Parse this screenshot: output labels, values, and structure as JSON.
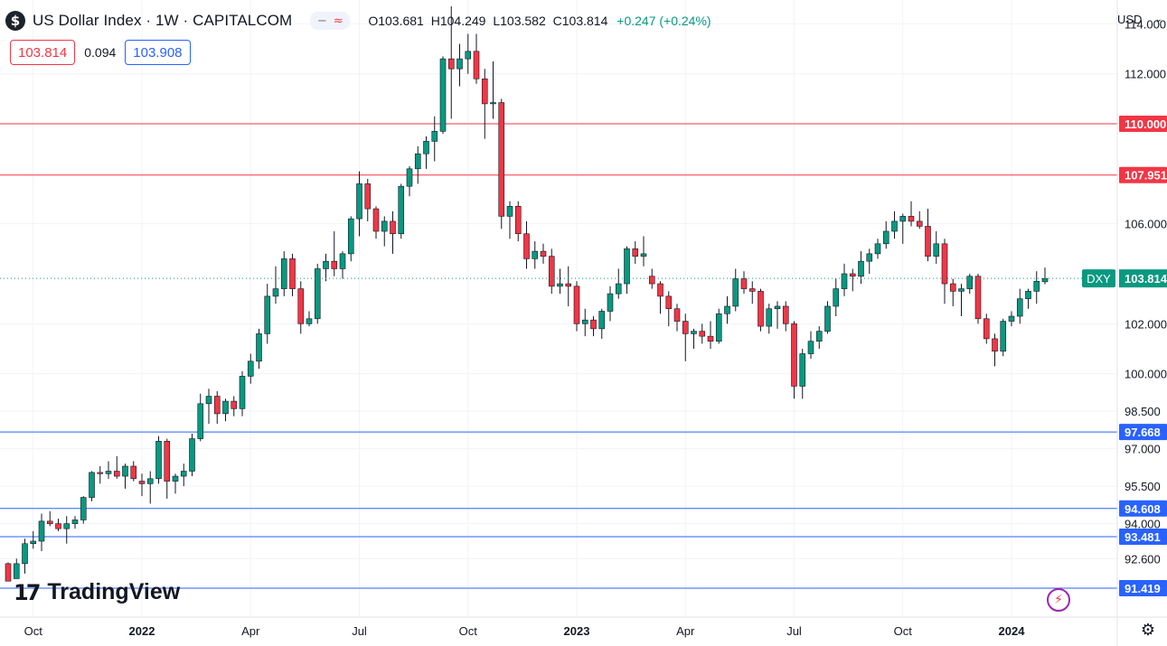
{
  "header": {
    "symbol_icon": "$",
    "title": "US Dollar Index · 1W · CAPITALCOM",
    "pill_icons": [
      "−",
      "≈"
    ],
    "ohlc": {
      "open_label": "O",
      "open": "103.681",
      "high_label": "H",
      "high": "104.249",
      "low_label": "L",
      "low": "103.582",
      "close_label": "C",
      "close": "103.814",
      "change": "+0.247 (+0.24%)"
    }
  },
  "prices": {
    "sell": "103.814",
    "spread": "0.094",
    "buy": "103.908"
  },
  "currency": {
    "label": "USD",
    "chevron": "⌄"
  },
  "logo": {
    "mark": "17",
    "text": "TradingView"
  },
  "colors": {
    "up": "#089981",
    "down": "#f23645",
    "resistance": "#f23645",
    "support": "#2962ff",
    "grid": "#f0f3fa"
  },
  "icons": {
    "alert": "lightning-icon",
    "settings": "gear-icon",
    "settings_glyph": "⚙",
    "alert_glyph": "⚡"
  },
  "chart_data": {
    "type": "candlestick",
    "timeframe": "1W",
    "ylim": [
      91.0,
      115.3
    ],
    "price_scale_ticks": [
      "114.000",
      "112.000",
      "110.000",
      "106.000",
      "102.000",
      "100.000",
      "98.500",
      "97.000",
      "95.500",
      "94.000",
      "92.600"
    ],
    "x_ticks": [
      {
        "label": "Oct",
        "index": 3,
        "bold": false
      },
      {
        "label": "2022",
        "index": 16,
        "bold": true
      },
      {
        "label": "Apr",
        "index": 29,
        "bold": false
      },
      {
        "label": "Jul",
        "index": 42,
        "bold": false
      },
      {
        "label": "Oct",
        "index": 55,
        "bold": false
      },
      {
        "label": "2023",
        "index": 68,
        "bold": true
      },
      {
        "label": "Apr",
        "index": 81,
        "bold": false
      },
      {
        "label": "Jul",
        "index": 94,
        "bold": false
      },
      {
        "label": "Oct",
        "index": 107,
        "bold": false
      },
      {
        "label": "2024",
        "index": 120,
        "bold": true
      }
    ],
    "horizontal_levels": [
      {
        "value": 110.0,
        "label": "110.000",
        "kind": "resistance"
      },
      {
        "value": 107.951,
        "label": "107.951",
        "kind": "resistance"
      },
      {
        "value": 97.668,
        "label": "97.668",
        "kind": "support"
      },
      {
        "value": 94.608,
        "label": "94.608",
        "kind": "support"
      },
      {
        "value": 93.481,
        "label": "93.481",
        "kind": "support"
      },
      {
        "value": 91.419,
        "label": "91.419",
        "kind": "support"
      }
    ],
    "last_price": {
      "value": 103.814,
      "label": "103.814",
      "symbol": "DXY"
    },
    "candles": [
      [
        92.4,
        92.45,
        91.7,
        91.7
      ],
      [
        91.8,
        92.6,
        91.9,
        92.4
      ],
      [
        92.4,
        93.4,
        92.0,
        93.2
      ],
      [
        93.2,
        93.7,
        93.0,
        93.3
      ],
      [
        93.3,
        94.4,
        92.9,
        94.1
      ],
      [
        94.1,
        94.5,
        93.9,
        94.0
      ],
      [
        94.0,
        94.2,
        93.7,
        93.8
      ],
      [
        93.8,
        94.3,
        93.2,
        94.0
      ],
      [
        94.0,
        94.3,
        93.8,
        94.15
      ],
      [
        94.15,
        95.1,
        94.0,
        95.05
      ],
      [
        95.05,
        96.1,
        94.9,
        96.05
      ],
      [
        96.05,
        96.3,
        95.6,
        96.0
      ],
      [
        96.0,
        96.5,
        95.8,
        96.1
      ],
      [
        96.1,
        96.7,
        95.8,
        95.9
      ],
      [
        95.9,
        96.4,
        95.4,
        96.3
      ],
      [
        96.3,
        96.5,
        95.7,
        95.8
      ],
      [
        95.7,
        96.0,
        95.1,
        95.6
      ],
      [
        95.6,
        96.1,
        94.8,
        95.8
      ],
      [
        95.8,
        97.5,
        95.6,
        97.3
      ],
      [
        97.3,
        97.4,
        95.0,
        95.7
      ],
      [
        95.7,
        96.0,
        95.2,
        95.9
      ],
      [
        95.9,
        96.4,
        95.5,
        96.1
      ],
      [
        96.1,
        97.6,
        95.9,
        97.4
      ],
      [
        97.4,
        99.2,
        97.3,
        98.8
      ],
      [
        98.8,
        99.4,
        98.0,
        99.1
      ],
      [
        99.1,
        99.3,
        98.0,
        98.4
      ],
      [
        98.4,
        99.0,
        98.1,
        98.9
      ],
      [
        98.9,
        99.1,
        98.3,
        98.6
      ],
      [
        98.6,
        100.1,
        98.3,
        99.9
      ],
      [
        99.9,
        100.8,
        99.6,
        100.5
      ],
      [
        100.5,
        101.8,
        100.2,
        101.6
      ],
      [
        101.6,
        103.6,
        101.2,
        103.1
      ],
      [
        103.1,
        104.3,
        102.8,
        103.4
      ],
      [
        103.4,
        104.9,
        103.1,
        104.6
      ],
      [
        104.6,
        104.8,
        103.1,
        103.4
      ],
      [
        103.4,
        103.7,
        101.6,
        102.0
      ],
      [
        102.0,
        102.5,
        101.9,
        102.2
      ],
      [
        102.2,
        104.4,
        102.0,
        104.2
      ],
      [
        104.2,
        104.8,
        103.7,
        104.5
      ],
      [
        104.5,
        105.7,
        103.9,
        104.2
      ],
      [
        104.2,
        104.9,
        103.8,
        104.8
      ],
      [
        104.8,
        106.3,
        104.5,
        106.2
      ],
      [
        106.2,
        108.1,
        105.5,
        107.6
      ],
      [
        107.6,
        107.8,
        106.1,
        106.6
      ],
      [
        106.6,
        106.7,
        105.4,
        105.7
      ],
      [
        105.7,
        106.3,
        105.1,
        106.1
      ],
      [
        106.1,
        106.5,
        104.8,
        105.6
      ],
      [
        105.6,
        107.6,
        105.4,
        107.5
      ],
      [
        107.5,
        108.3,
        107.1,
        108.2
      ],
      [
        108.2,
        109.1,
        107.6,
        108.8
      ],
      [
        108.8,
        109.5,
        108.2,
        109.3
      ],
      [
        109.3,
        110.3,
        108.5,
        109.7
      ],
      [
        109.7,
        112.7,
        109.6,
        112.6
      ],
      [
        112.6,
        114.7,
        110.2,
        112.2
      ],
      [
        112.2,
        113.2,
        111.5,
        112.6
      ],
      [
        112.6,
        113.6,
        112.0,
        112.9
      ],
      [
        112.9,
        113.6,
        111.6,
        111.8
      ],
      [
        111.8,
        112.2,
        109.4,
        110.8
      ],
      [
        110.8,
        112.5,
        110.2,
        110.85
      ],
      [
        110.85,
        111.0,
        105.8,
        106.3
      ],
      [
        106.3,
        106.9,
        105.4,
        106.7
      ],
      [
        106.7,
        106.9,
        105.3,
        105.6
      ],
      [
        105.6,
        106.1,
        104.2,
        104.6
      ],
      [
        104.6,
        105.3,
        104.2,
        104.9
      ],
      [
        104.9,
        105.2,
        104.4,
        104.7
      ],
      [
        104.7,
        105.0,
        103.2,
        103.5
      ],
      [
        103.5,
        104.2,
        103.2,
        103.6
      ],
      [
        103.6,
        104.3,
        102.7,
        103.5
      ],
      [
        103.5,
        103.7,
        101.7,
        102.0
      ],
      [
        102.0,
        102.6,
        101.5,
        102.15
      ],
      [
        102.15,
        102.3,
        101.5,
        101.8
      ],
      [
        101.8,
        102.6,
        101.4,
        102.5
      ],
      [
        102.5,
        103.5,
        102.1,
        103.2
      ],
      [
        103.2,
        104.2,
        103.0,
        103.6
      ],
      [
        103.6,
        105.1,
        103.2,
        105.0
      ],
      [
        105.0,
        105.3,
        104.4,
        104.7
      ],
      [
        104.7,
        105.5,
        104.3,
        104.8
      ],
      [
        103.9,
        104.2,
        103.4,
        103.6
      ],
      [
        103.6,
        103.7,
        102.4,
        103.1
      ],
      [
        103.1,
        103.3,
        101.9,
        102.6
      ],
      [
        102.6,
        102.8,
        101.7,
        102.1
      ],
      [
        102.1,
        102.4,
        100.5,
        101.6
      ],
      [
        101.6,
        101.8,
        101.0,
        101.7
      ],
      [
        101.7,
        102.0,
        101.2,
        101.5
      ],
      [
        101.5,
        102.1,
        101.0,
        101.3
      ],
      [
        101.3,
        102.6,
        101.2,
        102.4
      ],
      [
        102.4,
        103.1,
        102.0,
        102.7
      ],
      [
        102.7,
        104.2,
        102.5,
        103.8
      ],
      [
        103.8,
        104.1,
        103.2,
        103.4
      ],
      [
        103.4,
        103.7,
        102.8,
        103.3
      ],
      [
        103.3,
        103.4,
        101.7,
        101.9
      ],
      [
        101.9,
        102.8,
        101.6,
        102.6
      ],
      [
        102.6,
        102.9,
        101.8,
        102.7
      ],
      [
        102.7,
        102.9,
        101.7,
        102.0
      ],
      [
        102.0,
        102.1,
        99.0,
        99.5
      ],
      [
        99.5,
        101.0,
        99.0,
        100.8
      ],
      [
        100.8,
        101.7,
        100.6,
        101.3
      ],
      [
        101.3,
        101.9,
        101.0,
        101.7
      ],
      [
        101.7,
        102.9,
        101.6,
        102.7
      ],
      [
        102.7,
        103.8,
        102.3,
        103.4
      ],
      [
        103.4,
        104.4,
        103.1,
        104.0
      ],
      [
        104.0,
        104.2,
        103.3,
        103.9
      ],
      [
        103.9,
        104.9,
        103.6,
        104.5
      ],
      [
        104.5,
        105.0,
        104.0,
        104.8
      ],
      [
        104.8,
        105.4,
        104.6,
        105.2
      ],
      [
        105.2,
        106.1,
        105.0,
        105.7
      ],
      [
        105.7,
        106.5,
        105.4,
        106.1
      ],
      [
        106.1,
        106.4,
        105.2,
        106.3
      ],
      [
        106.3,
        106.9,
        105.9,
        106.1
      ],
      [
        106.1,
        106.5,
        105.8,
        105.9
      ],
      [
        105.9,
        106.6,
        104.5,
        104.7
      ],
      [
        104.7,
        105.7,
        104.4,
        105.2
      ],
      [
        105.2,
        105.4,
        102.8,
        103.6
      ],
      [
        103.6,
        103.8,
        102.7,
        103.3
      ],
      [
        103.3,
        103.6,
        102.3,
        103.4
      ],
      [
        103.4,
        104.0,
        103.2,
        103.9
      ],
      [
        103.9,
        104.0,
        102.0,
        102.2
      ],
      [
        102.2,
        102.4,
        101.2,
        101.4
      ],
      [
        101.4,
        101.6,
        100.3,
        100.9
      ],
      [
        100.9,
        102.2,
        100.7,
        102.1
      ],
      [
        102.1,
        102.5,
        101.9,
        102.3
      ],
      [
        102.3,
        103.4,
        102.0,
        103.0
      ],
      [
        103.0,
        103.4,
        102.6,
        103.3
      ],
      [
        103.3,
        104.1,
        102.8,
        103.7
      ],
      [
        103.68,
        104.25,
        103.58,
        103.81
      ]
    ]
  }
}
